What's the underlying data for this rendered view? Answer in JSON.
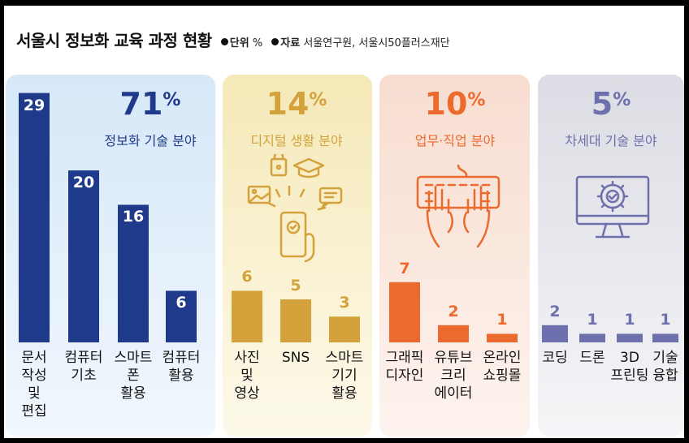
{
  "header": {
    "title": "서울시 정보화 교육 과정 현황",
    "unit_label": "단위",
    "unit_value": "%",
    "source_label": "자료",
    "source_value": "서울연구원, 서울시50플러스재단"
  },
  "chart_data": {
    "type": "bar",
    "title": "서울시 정보화 교육 과정 현황",
    "unit": "%",
    "groups": [
      {
        "name": "정보화 기술 분야",
        "share": "71",
        "color": "#1f3a8a",
        "categories": [
          "문서\n작성\n및\n편집",
          "컴퓨터\n기초",
          "스마트\n폰\n활용",
          "컴퓨터\n활용"
        ],
        "values": [
          29,
          20,
          16,
          6
        ]
      },
      {
        "name": "디지털 생활 분야",
        "share": "14",
        "color": "#d4a23a",
        "categories": [
          "사진\n및\n영상",
          "SNS",
          "스마트\n기기\n활용"
        ],
        "values": [
          6,
          5,
          3
        ]
      },
      {
        "name": "업무·직업 분야",
        "share": "10",
        "color": "#ec6a2d",
        "categories": [
          "그래픽\n디자인",
          "유튜브\n크리\n에이터",
          "온라인\n쇼핑몰"
        ],
        "values": [
          7,
          2,
          1
        ]
      },
      {
        "name": "차세대 기술 분야",
        "share": "5",
        "color": "#6e70ad",
        "categories": [
          "코딩",
          "드론",
          "3D\n프린팅",
          "기술\n융합"
        ],
        "values": [
          2,
          1,
          1,
          1
        ]
      }
    ]
  },
  "icons": [
    "phone-apps-icon",
    "keyboard-hands-icon",
    "monitor-gear-icon"
  ]
}
